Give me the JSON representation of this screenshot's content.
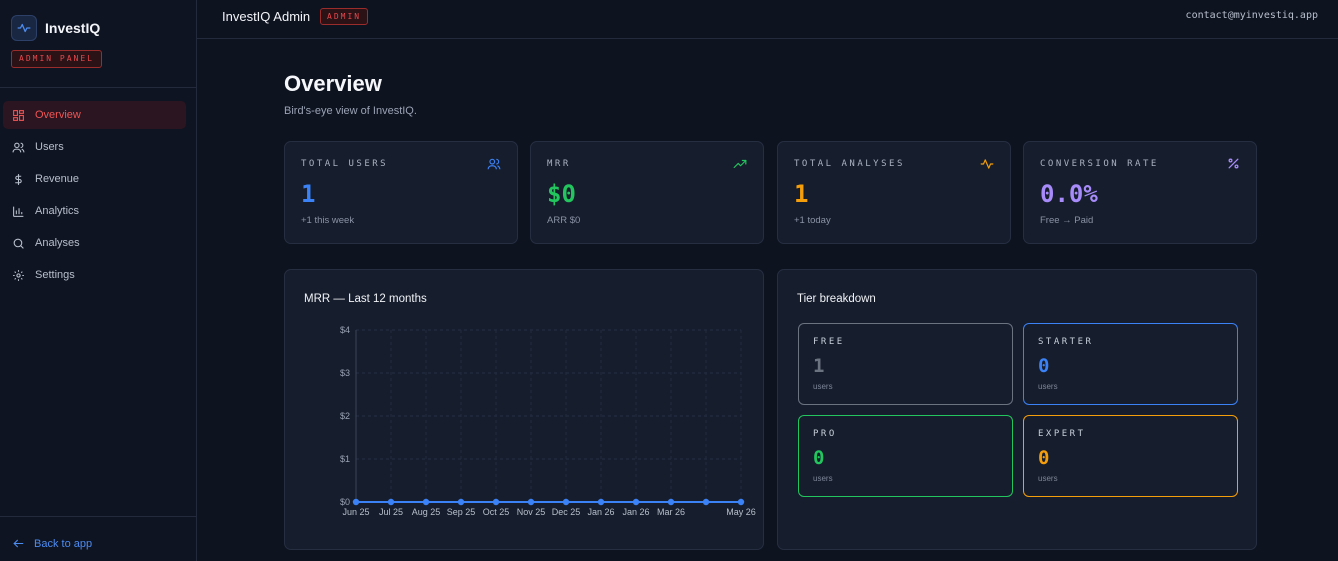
{
  "brand": {
    "name": "InvestIQ",
    "panel_badge": "ADMIN PANEL",
    "icon": "pulse-icon"
  },
  "sidebar": {
    "items": [
      {
        "label": "Overview",
        "icon": "dashboard-grid-icon",
        "active": true
      },
      {
        "label": "Users",
        "icon": "users-icon",
        "active": false
      },
      {
        "label": "Revenue",
        "icon": "dollar-icon",
        "active": false
      },
      {
        "label": "Analytics",
        "icon": "bar-chart-icon",
        "active": false
      },
      {
        "label": "Analyses",
        "icon": "search-icon",
        "active": false
      },
      {
        "label": "Settings",
        "icon": "gear-icon",
        "active": false
      }
    ],
    "back_label": "Back to app"
  },
  "topbar": {
    "title": "InvestIQ Admin",
    "badge": "ADMIN",
    "email": "contact@myinvestiq.app"
  },
  "page": {
    "title": "Overview",
    "subtitle": "Bird's-eye view of InvestIQ."
  },
  "stats": [
    {
      "label": "TOTAL USERS",
      "value": "1",
      "sub": "+1 this week",
      "icon": "users-icon",
      "color": "#3b82f6"
    },
    {
      "label": "MRR",
      "value": "$0",
      "sub": "ARR $0",
      "icon": "trending-up-icon",
      "color": "#22c55e"
    },
    {
      "label": "TOTAL ANALYSES",
      "value": "1",
      "sub": "+1 today",
      "icon": "activity-icon",
      "color": "#f59e0b"
    },
    {
      "label": "CONVERSION RATE",
      "value": "0.0%",
      "sub": "Free → Paid",
      "icon": "percent-icon",
      "color": "#a78bfa"
    }
  ],
  "mrr_panel": {
    "title": "MRR — Last 12 months"
  },
  "chart_data": {
    "type": "line",
    "title": "MRR — Last 12 months",
    "x": [
      "Jun 25",
      "Jul 25",
      "Aug 25",
      "Sep 25",
      "Oct 25",
      "Nov 25",
      "Dec 25",
      "Jan 26",
      "Jan 26",
      "Mar 26",
      "",
      "May 26"
    ],
    "series": [
      {
        "values": [
          0,
          0,
          0,
          0,
          0,
          0,
          0,
          0,
          0,
          0,
          0,
          0
        ]
      }
    ],
    "y_ticks": [
      "$0",
      "$1",
      "$2",
      "$3",
      "$4"
    ],
    "ylim": [
      0,
      4
    ],
    "grid": true,
    "color": "#3b82f6"
  },
  "tier_panel": {
    "title": "Tier breakdown",
    "tiers": [
      {
        "name": "FREE",
        "count": "1",
        "unit": "users",
        "color": "#6b7280",
        "border": "#6b7280"
      },
      {
        "name": "STARTER",
        "count": "0",
        "unit": "users",
        "color": "#3b82f6",
        "border": "#3b82f6"
      },
      {
        "name": "PRO",
        "count": "0",
        "unit": "users",
        "color": "#22c55e",
        "border": "#22c55e"
      },
      {
        "name": "EXPERT",
        "count": "0",
        "unit": "users",
        "color": "#f59e0b",
        "border": "#f59e0b"
      }
    ]
  }
}
